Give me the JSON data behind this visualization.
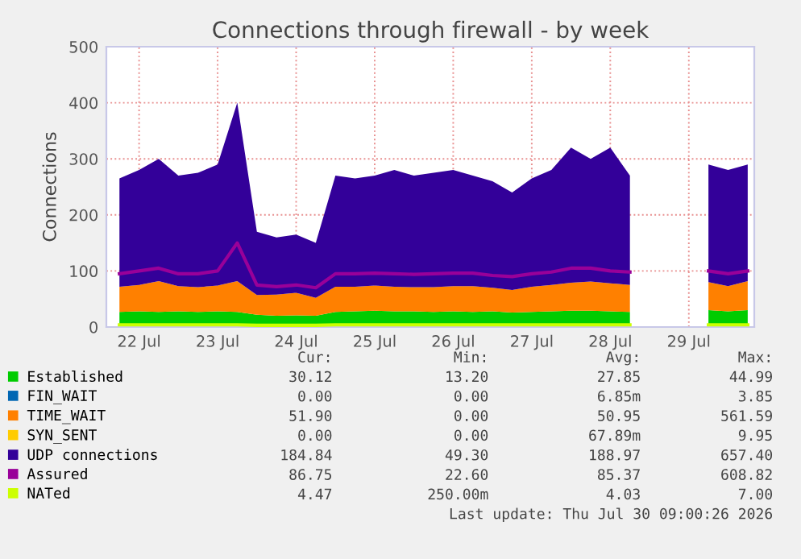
{
  "chart_data": {
    "type": "area",
    "stacked": true,
    "title": "Connections through firewall - by week",
    "ylabel": "Connections",
    "x": [
      "2026-07-22T06:00",
      "2026-07-22T12:00",
      "2026-07-22T18:00",
      "2026-07-23T00:00",
      "2026-07-23T06:00",
      "2026-07-23T12:00",
      "2026-07-23T18:00",
      "2026-07-24T00:00",
      "2026-07-24T06:00",
      "2026-07-24T12:00",
      "2026-07-24T18:00",
      "2026-07-25T00:00",
      "2026-07-25T06:00",
      "2026-07-25T12:00",
      "2026-07-25T18:00",
      "2026-07-26T00:00",
      "2026-07-26T06:00",
      "2026-07-26T12:00",
      "2026-07-26T18:00",
      "2026-07-27T00:00",
      "2026-07-27T06:00",
      "2026-07-27T12:00",
      "2026-07-27T18:00",
      "2026-07-28T00:00",
      "2026-07-28T06:00",
      "2026-07-28T12:00",
      "2026-07-28T18:00",
      "2026-07-29T00:00",
      "2026-07-29T06:00",
      "2026-07-29T12:00",
      "2026-07-29T18:00",
      "2026-07-30T00:00",
      "2026-07-30T06:00"
    ],
    "series": [
      {
        "name": "Established",
        "color": "#00cc00",
        "values": [
          27,
          28,
          27,
          28,
          27,
          28,
          27,
          22,
          20,
          21,
          20,
          27,
          28,
          29,
          28,
          28,
          27,
          28,
          27,
          28,
          26,
          27,
          28,
          29,
          29,
          28,
          27,
          null,
          null,
          null,
          30,
          28,
          30
        ]
      },
      {
        "name": "FIN_WAIT",
        "color": "#0066b3",
        "values": [
          null,
          null,
          null,
          null,
          null,
          null,
          null,
          null,
          null,
          null,
          null,
          null,
          null,
          null,
          null,
          null,
          null,
          null,
          null,
          null,
          null,
          null,
          null,
          null,
          null,
          null,
          null,
          null,
          null,
          null,
          null,
          null,
          null
        ]
      },
      {
        "name": "TIME_WAIT",
        "color": "#ff8000",
        "values": [
          45,
          47,
          55,
          45,
          44,
          46,
          55,
          35,
          38,
          40,
          32,
          45,
          44,
          45,
          44,
          43,
          44,
          45,
          46,
          42,
          40,
          45,
          47,
          50,
          52,
          50,
          48,
          null,
          null,
          null,
          50,
          45,
          52
        ]
      },
      {
        "name": "SYN_SENT",
        "color": "#ffcc00",
        "values": [
          null,
          null,
          null,
          null,
          null,
          null,
          null,
          null,
          null,
          null,
          null,
          null,
          null,
          null,
          null,
          null,
          null,
          null,
          null,
          null,
          null,
          null,
          null,
          null,
          null,
          null,
          null,
          null,
          null,
          null,
          null,
          null,
          null
        ]
      },
      {
        "name": "UDP connections",
        "color": "#330099",
        "values": [
          193,
          205,
          218,
          197,
          204,
          216,
          318,
          113,
          102,
          104,
          98,
          198,
          193,
          196,
          208,
          199,
          204,
          207,
          197,
          190,
          174,
          193,
          205,
          241,
          219,
          242,
          195,
          null,
          null,
          null,
          210,
          207,
          208
        ]
      },
      {
        "name": "Assured",
        "color": "#990099",
        "type": "line",
        "values": [
          95,
          100,
          105,
          95,
          95,
          100,
          150,
          75,
          72,
          75,
          70,
          95,
          95,
          96,
          95,
          94,
          95,
          96,
          96,
          92,
          90,
          95,
          98,
          105,
          105,
          100,
          98,
          null,
          null,
          null,
          100,
          95,
          100
        ]
      },
      {
        "name": "NATed",
        "color": "#ccff00",
        "type": "line",
        "values": [
          4,
          4,
          4,
          4,
          4,
          4,
          4,
          3,
          3,
          3,
          3,
          4,
          4,
          4,
          4,
          4,
          4,
          4,
          4,
          4,
          4,
          4,
          4,
          4,
          4,
          4,
          4,
          null,
          null,
          null,
          4,
          4,
          4
        ]
      }
    ],
    "xlim": [
      "2026-07-22T02:00",
      "2026-07-30T08:00"
    ],
    "xticks": [
      {
        "value": "2026-07-22T12:00",
        "label": "22 Jul"
      },
      {
        "value": "2026-07-23T12:00",
        "label": "23 Jul"
      },
      {
        "value": "2026-07-24T12:00",
        "label": "24 Jul"
      },
      {
        "value": "2026-07-25T12:00",
        "label": "25 Jul"
      },
      {
        "value": "2026-07-26T12:00",
        "label": "26 Jul"
      },
      {
        "value": "2026-07-27T12:00",
        "label": "27 Jul"
      },
      {
        "value": "2026-07-28T12:00",
        "label": "28 Jul"
      },
      {
        "value": "2026-07-29T12:00",
        "label": "29 Jul"
      }
    ],
    "ylim": [
      0,
      500
    ],
    "yticks": [
      0,
      100,
      200,
      300,
      400,
      500
    ],
    "grid": true,
    "legend": "bottom",
    "annotations": [
      "Cur:",
      "Min:",
      "Avg:",
      "Max:",
      "30.12",
      "13.20",
      "27.85",
      "44.99",
      "0.00",
      "0.00",
      "6.85m",
      "3.85",
      "51.90",
      "0.00",
      "50.95",
      "561.59",
      "0.00",
      "0.00",
      "67.89m",
      "9.95",
      "184.84",
      "49.30",
      "188.97",
      "657.40",
      "86.75",
      "22.60",
      "85.37",
      "608.82",
      "4.47",
      "250.00m",
      "4.03",
      "7.00",
      "Last update: Thu Jul 30 09:00:26 2026"
    ]
  }
}
